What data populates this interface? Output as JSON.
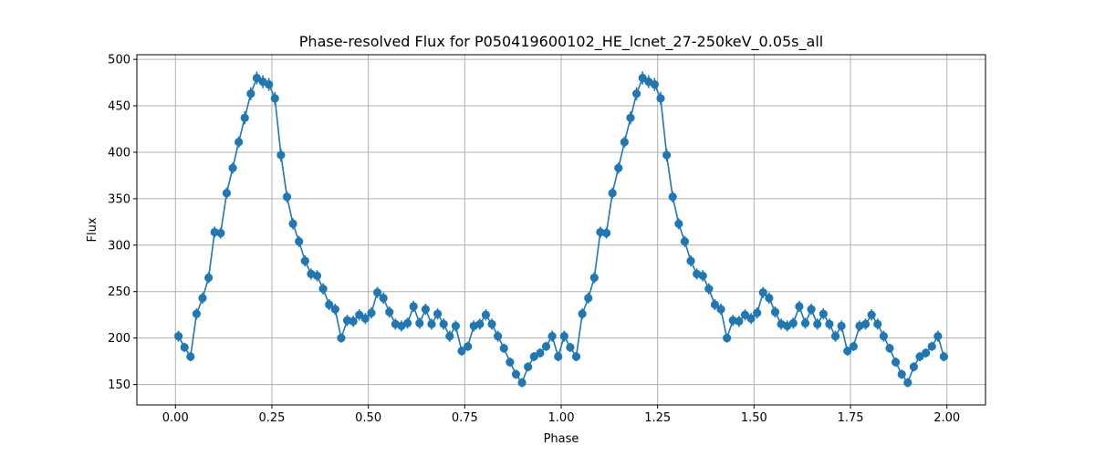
{
  "chart_data": {
    "type": "line",
    "title": "Phase-resolved Flux for P050419600102_HE_lcnet_27-250keV_0.05s_all",
    "xlabel": "Phase",
    "ylabel": "Flux",
    "xlim": [
      -0.1,
      2.1
    ],
    "ylim": [
      128,
      505
    ],
    "xticks": [
      0.0,
      0.25,
      0.5,
      0.75,
      1.0,
      1.25,
      1.5,
      1.75,
      2.0
    ],
    "xtick_labels": [
      "0.00",
      "0.25",
      "0.50",
      "0.75",
      "1.00",
      "1.25",
      "1.50",
      "1.75",
      "2.00"
    ],
    "yticks": [
      150,
      200,
      250,
      300,
      350,
      400,
      450,
      500
    ],
    "ytick_labels": [
      "150",
      "200",
      "250",
      "300",
      "350",
      "400",
      "450",
      "500"
    ],
    "grid": true,
    "color": "#1f77b4",
    "marker": "circle",
    "error_bars": true,
    "period_values": [
      202,
      190,
      180,
      226,
      243,
      265,
      314,
      313,
      356,
      383,
      411,
      437,
      463,
      480,
      476,
      473,
      458,
      397,
      352,
      323,
      304,
      283,
      269,
      267,
      253,
      236,
      231,
      200,
      219,
      218,
      225,
      221,
      227,
      249,
      243,
      228,
      215,
      213,
      216,
      234,
      216,
      231,
      215,
      226,
      215,
      202,
      213,
      186,
      191,
      213,
      215,
      225,
      215,
      202,
      189,
      174,
      161,
      152,
      169,
      180,
      184,
      191,
      202,
      180
    ],
    "period_errors": [
      6,
      5,
      5,
      6,
      6,
      6,
      6,
      6,
      6,
      6,
      6,
      7,
      7,
      7,
      7,
      7,
      7,
      7,
      6,
      6,
      6,
      6,
      6,
      6,
      6,
      6,
      6,
      5,
      6,
      6,
      6,
      6,
      6,
      6,
      6,
      6,
      6,
      6,
      6,
      6,
      6,
      6,
      6,
      6,
      6,
      6,
      6,
      5,
      5,
      6,
      6,
      6,
      6,
      6,
      5,
      5,
      5,
      5,
      5,
      5,
      5,
      5,
      6,
      5
    ],
    "phase_step": 0.015625,
    "phase_start": 0.0078125,
    "periods": 2
  }
}
